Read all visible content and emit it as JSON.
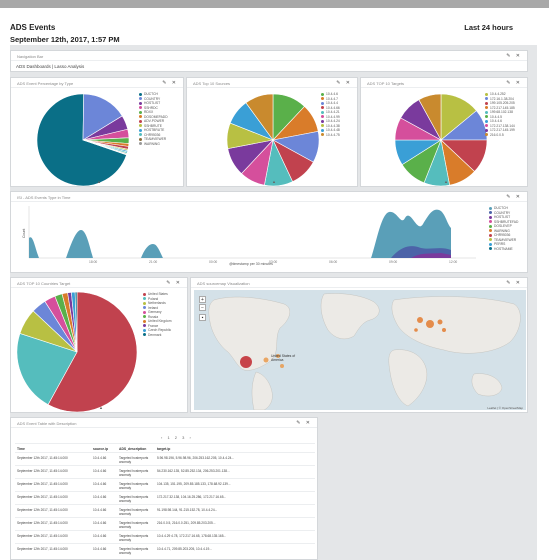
{
  "header": {
    "title": "ADS Events",
    "date": "September 12th, 2017, 1:57 PM",
    "range": "Last 24 hours"
  },
  "nav_panel": {
    "title": "Navigation Bar",
    "crumb": "ADS Dashboards | Lasso Analysis"
  },
  "panels": {
    "p1": {
      "title": "ADS Event Percentage by Type"
    },
    "p2": {
      "title": "ADS Top 10 Sources"
    },
    "p3": {
      "title": "ADS TOP 10 Targets"
    },
    "p4": {
      "title": "ISI - ADS Events Type in Time"
    },
    "p5": {
      "title": "ADS TOP 10 Countries Target"
    },
    "p6": {
      "title": "ADS sourcemap Visualization"
    },
    "p7": {
      "title": "ADS Event Table with Description"
    }
  },
  "edit_icons": "✎ ✕",
  "legends": {
    "types": [
      "DUCTCH",
      "COUNTRY",
      "HOSTLIST",
      "SSHRDC",
      "RDXX",
      "DOSOMEPADD",
      "ADV-POWER",
      "SSHBRUTE",
      "HOSTBRUTE",
      "CHR95036",
      "TEAMVIEWER",
      "WARNING"
    ],
    "sources": [
      "10.4.4.6",
      "10.4.4.7",
      "10.4.4.4",
      "10.4.4.66",
      "10.4.4.21",
      "10.4.4.99",
      "10.4.4.24",
      "10.4.4.38",
      "10.4.4.48",
      "10.4.4.75"
    ],
    "targets": [
      "10.4.4.252",
      "172.16.1.38.204",
      "199.105.205.205",
      "172.217.145.185",
      "199.68.102.138",
      "10.4.4.5",
      "10.4.4.6",
      "172.217.138.144",
      "172.217.145.199",
      "216.0.0.5"
    ],
    "time": [
      "DUCTCH",
      "COUNTRY",
      "HOSTLIST",
      "SSHBRUTEFAD",
      "DOSLEVEP",
      "WARNING",
      "CHR95036",
      "TEAMVIEWER",
      "PERRS",
      "HOSTNAME"
    ],
    "countries": [
      "United States",
      "Poland",
      "Netherlands",
      "Ireland",
      "Germany",
      "Russia",
      "United Kingdom",
      "France",
      "Czech Republic",
      "Denmark"
    ]
  },
  "time_axis": {
    "xlabel": "@timestamp per 30 minutes",
    "ylabel": "Count",
    "ticks": [
      "18:00",
      "21:00",
      "00:00",
      "03:00",
      "06:00",
      "09:00",
      "12:00"
    ]
  },
  "map": {
    "label_us": "United States of America",
    "attribution": "Leaflet | © OpenStreetMap"
  },
  "table": {
    "pager": "‹ 1 2 3 ›",
    "headers": [
      "Time",
      "source.ip",
      "ADS_description",
      "target.ip"
    ],
    "rows": [
      {
        "time": "September 12th 2017, 11:45:14.000",
        "src": "10.4.4.66",
        "desc": "Targeted hostreports anomaly",
        "tgt": "5.96.98.196, 5.96.98.96, 206.253.162.205, 10.4.4.24..."
      },
      {
        "time": "September 12th 2017, 11:45:14.000",
        "src": "10.4.4.66",
        "desc": "Targeted hostreports anomaly",
        "tgt": "54.230.162.135, 52.85.252.134, 206.253.201.138..."
      },
      {
        "time": "September 12th 2017, 11:45:14.000",
        "src": "10.4.4.66",
        "desc": "Targeted hostreports anomaly",
        "tgt": "104.135, 151.195, 209.85.185.133, 178.68.92.139..."
      },
      {
        "time": "September 12th 2017, 11:45:14.000",
        "src": "10.4.4.66",
        "desc": "Targeted hostreports anomaly",
        "tgt": "172.217.32.138, 104.16.25.286, 172.217.16.65..."
      },
      {
        "time": "September 12th 2017, 11:45:14.000",
        "src": "10.4.4.66",
        "desc": "Targeted hostreports anomaly",
        "tgt": "91.198.98.144, 91.215.152.78, 10.4.4.24..."
      },
      {
        "time": "September 12th 2017, 11:45:14.000",
        "src": "10.4.4.66",
        "desc": "Targeted hostreports anomaly",
        "tgt": "216.0.0.5, 216.0.0.251, 209.85.203.205..."
      },
      {
        "time": "September 12th 2017, 11:45:14.000",
        "src": "10.4.4.66",
        "desc": "Targeted hostreports anomaly",
        "tgt": "10.4.4.29 4.78, 172.217.16.65, 178.68.135.165..."
      },
      {
        "time": "September 12th 2017, 11:45:14.000",
        "src": "10.4.4.66",
        "desc": "Targeted hostreports anomaly",
        "tgt": "10.4.4.71, 209.85.203.205, 10.4.4.19..."
      }
    ]
  },
  "colors": {
    "teal": "#0a6f87",
    "blue": "#6c86d8",
    "purple": "#7a3a9d",
    "pink": "#d54f9c",
    "green": "#5ab04a",
    "orange": "#d97c2a",
    "red": "#c1424e",
    "yellow": "#b8c043",
    "lightblue": "#3a9fd6",
    "cyan": "#55bdbd"
  },
  "chart_data": [
    {
      "type": "pie",
      "title": "ADS Event Percentage by Type",
      "categories": [
        "DUCTCH",
        "COUNTRY",
        "HOSTLIST",
        "SSHRDC",
        "RDXX",
        "DOSOMEPADD",
        "ADV-POWER",
        "SSHBRUTE",
        "HOSTBRUTE",
        "CHR95036",
        "TEAMVIEWER",
        "WARNING"
      ],
      "values": [
        70,
        16,
        5,
        3,
        2,
        1,
        1,
        0.5,
        0.5,
        0.5,
        0.3,
        0.2
      ]
    },
    {
      "type": "pie",
      "title": "ADS Top 10 Sources",
      "categories": [
        "10.4.4.6",
        "10.4.4.7",
        "10.4.4.4",
        "10.4.4.66",
        "10.4.4.21",
        "10.4.4.99",
        "10.4.4.24",
        "10.4.4.38",
        "10.4.4.48",
        "10.4.4.75"
      ],
      "values": [
        12,
        10,
        11,
        10,
        10,
        9,
        10,
        9,
        9,
        10
      ]
    },
    {
      "type": "pie",
      "title": "ADS TOP 10 Targets",
      "categories": [
        "10.4.4.252",
        "172.16.1.38.204",
        "199.105.205.205",
        "172.217.145.185",
        "199.68.102.138",
        "10.4.4.5",
        "10.4.4.6",
        "172.217.138.144",
        "172.217.145.199",
        "216.0.0.5"
      ],
      "values": [
        14,
        11,
        12,
        10,
        9,
        10,
        9,
        8,
        9,
        8
      ]
    },
    {
      "type": "pie",
      "title": "ADS TOP 10 Countries Target",
      "categories": [
        "United States",
        "Poland",
        "Netherlands",
        "Ireland",
        "Germany",
        "Russia",
        "United Kingdom",
        "France",
        "Czech Republic",
        "Denmark"
      ],
      "values": [
        58,
        22,
        7,
        4,
        3,
        2,
        1.5,
        1,
        1,
        0.5
      ]
    }
  ]
}
